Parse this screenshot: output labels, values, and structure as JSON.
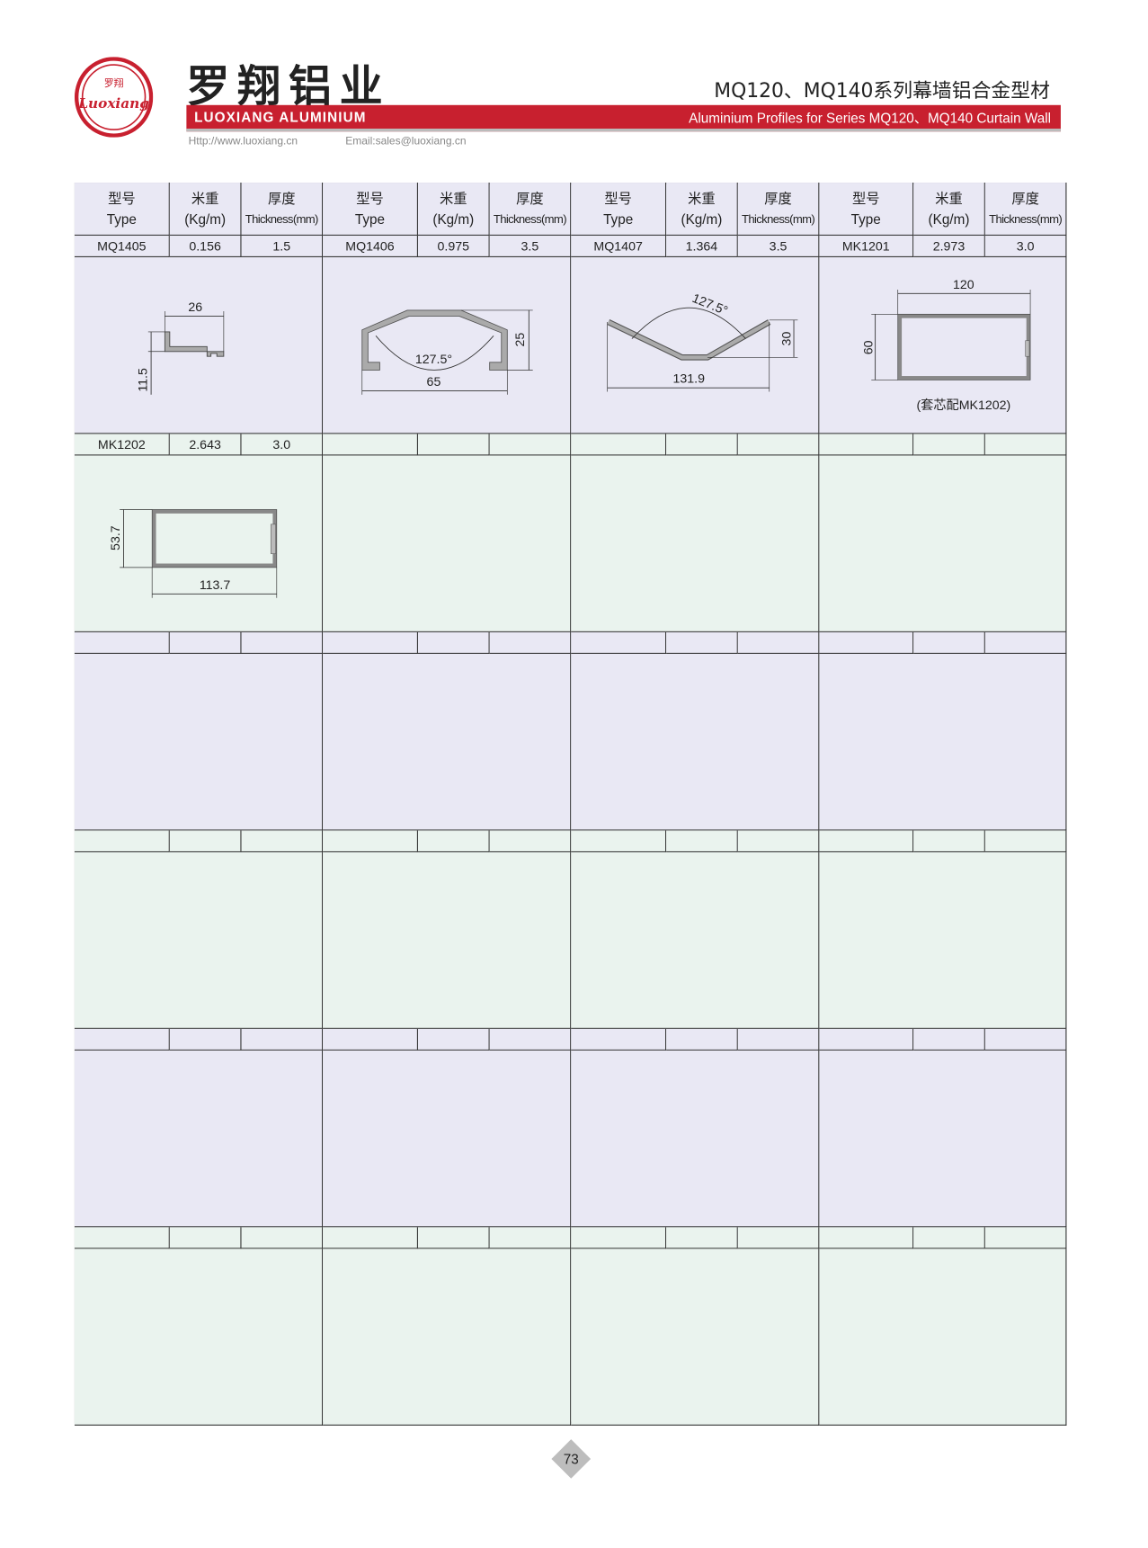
{
  "header": {
    "logo_text_cn": "罗翔",
    "logo_text_en": "Luoxiang",
    "brand_cn": "罗翔铝业",
    "brand_en": "LUOXIANG ALUMINIUM",
    "title_cn": "MQ120、MQ140系列幕墙铝合金型材",
    "title_en": "Aluminium Profiles for Series MQ120、MQ140 Curtain Wall",
    "website": "Http://www.luoxiang.cn",
    "email": "Email:sales@luoxiang.cn",
    "brand_color": "#c8202f"
  },
  "table": {
    "columns": [
      {
        "cn": "型号",
        "en": "Type"
      },
      {
        "cn": "米重",
        "en": "(Kg/m)"
      },
      {
        "cn": "厚度",
        "en": "Thickness(mm)"
      }
    ],
    "colors": {
      "lavender": "#e9e8f4",
      "mint": "#eaf3ee"
    },
    "rows": [
      [
        {
          "type": "MQ1405",
          "weight": "0.156",
          "thickness": "1.5",
          "drawing": "mq1405",
          "dims": [
            "26",
            "11.5"
          ]
        },
        {
          "type": "MQ1406",
          "weight": "0.975",
          "thickness": "3.5",
          "drawing": "mq1406",
          "dims": [
            "65",
            "25",
            "127.5°"
          ]
        },
        {
          "type": "MQ1407",
          "weight": "1.364",
          "thickness": "3.5",
          "drawing": "mq1407",
          "dims": [
            "131.9",
            "30",
            "127.5°"
          ]
        },
        {
          "type": "MK1201",
          "weight": "2.973",
          "thickness": "3.0",
          "drawing": "mk1201",
          "dims": [
            "120",
            "60"
          ],
          "note": "(套芯配MK1202)"
        }
      ],
      [
        {
          "type": "MK1202",
          "weight": "2.643",
          "thickness": "3.0",
          "drawing": "mk1202",
          "dims": [
            "113.7",
            "53.7"
          ]
        },
        {},
        {},
        {}
      ],
      [
        {},
        {},
        {},
        {}
      ],
      [
        {},
        {},
        {},
        {}
      ],
      [
        {},
        {},
        {},
        {}
      ],
      [
        {},
        {},
        {},
        {}
      ]
    ]
  },
  "footer": {
    "page_number": "73"
  }
}
